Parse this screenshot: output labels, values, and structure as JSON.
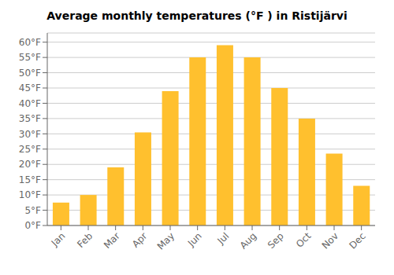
{
  "chart_data": {
    "type": "bar",
    "title": "Average monthly temperatures (°F ) in Ristijärvi",
    "categories": [
      "Jan",
      "Feb",
      "Mar",
      "Apr",
      "May",
      "Jun",
      "Jul",
      "Aug",
      "Sep",
      "Oct",
      "Nov",
      "Dec"
    ],
    "values": [
      7.5,
      10,
      19,
      30.5,
      44,
      55,
      59,
      55,
      45,
      35,
      23.5,
      13
    ],
    "color": "#FFC02E",
    "ylim": [
      0,
      63
    ],
    "yticks": [
      {
        "value": 0,
        "label": "0°F"
      },
      {
        "value": 5,
        "label": "5°F"
      },
      {
        "value": 10,
        "label": "10°F"
      },
      {
        "value": 15,
        "label": "15°F"
      },
      {
        "value": 20,
        "label": "20°F"
      },
      {
        "value": 25,
        "label": "25°F"
      },
      {
        "value": 30,
        "label": "30°F"
      },
      {
        "value": 35,
        "label": "35°F"
      },
      {
        "value": 40,
        "label": "40°F"
      },
      {
        "value": 45,
        "label": "45°F"
      },
      {
        "value": 50,
        "label": "50°F"
      },
      {
        "value": 55,
        "label": "55°F"
      },
      {
        "value": 60,
        "label": "60°F"
      }
    ],
    "grid": true
  }
}
